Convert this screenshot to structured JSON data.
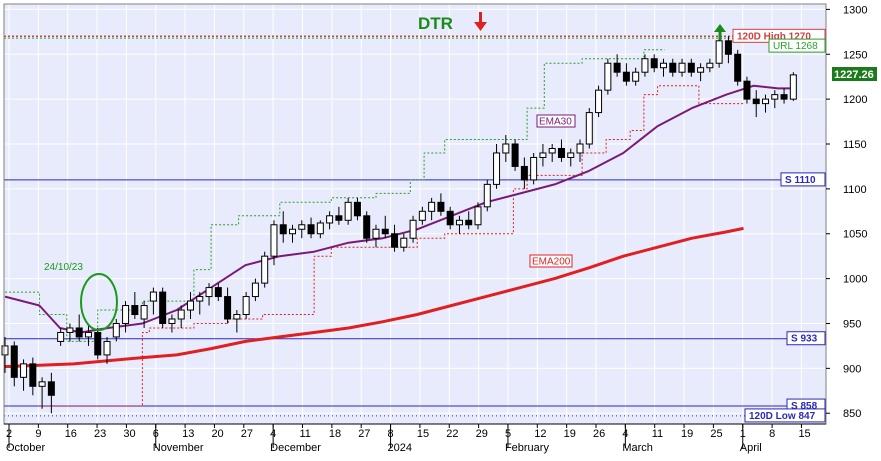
{
  "chart_data": {
    "type": "candlestick",
    "title": "DTR",
    "colors": {
      "background": "#e8ebfb",
      "title": "#1a8a1a",
      "down_arrow": "#e02020",
      "up_arrow": "#1a8a1a",
      "support": "#2a2ab8",
      "resistance": "#d04040",
      "ema30": "#7a1a78",
      "ema200": "#e02020",
      "trail_green": "#2aa02a",
      "trail_red": "#e02020",
      "candle": "#000000",
      "circle": "#1a9a1a",
      "grid": "#ffffff"
    },
    "ylim": [
      838,
      1306
    ],
    "y_ticks": [
      "850",
      "900",
      "950",
      "1000",
      "1050",
      "1100",
      "1150",
      "1200",
      "1250",
      "1300"
    ],
    "x_ticks": [
      "2",
      "9",
      "16",
      "23",
      "30",
      "6",
      "13",
      "20",
      "27",
      "4",
      "11",
      "18",
      "27",
      "8",
      "15",
      "22",
      "29",
      "5",
      "12",
      "19",
      "26",
      "4",
      "11",
      "19",
      "25",
      "1",
      "8",
      "15"
    ],
    "month_labels": [
      {
        "label": "October",
        "tick": 0
      },
      {
        "label": "November",
        "tick": 5
      },
      {
        "label": "December",
        "tick": 9
      },
      {
        "label": "2024",
        "tick": 13
      },
      {
        "label": "February",
        "tick": 17
      },
      {
        "label": "March",
        "tick": 21
      },
      {
        "label": "April",
        "tick": 25
      }
    ],
    "levels": [
      {
        "name": "120D High",
        "label": "120D High 1270",
        "value": 1270
      },
      {
        "name": "URL",
        "label": "URL 1268",
        "value": 1268
      },
      {
        "name": "S 1110",
        "label": "S 1110",
        "value": 1110
      },
      {
        "name": "S 933",
        "label": "S 933",
        "value": 933
      },
      {
        "name": "S 858",
        "label": "S 858",
        "value": 858
      },
      {
        "name": "120D Low",
        "label": "120D Low 847",
        "value": 847
      }
    ],
    "last_price": "1227.26",
    "ema30_label": "EMA30",
    "ema200_label": "EMA200",
    "annotation_date": "24/10/23",
    "ema30": [
      [
        0,
        980
      ],
      [
        10,
        970
      ],
      [
        16,
        945
      ],
      [
        22,
        940
      ],
      [
        30,
        945
      ],
      [
        40,
        950
      ],
      [
        50,
        965
      ],
      [
        60,
        990
      ],
      [
        70,
        1015
      ],
      [
        80,
        1025
      ],
      [
        90,
        1030
      ],
      [
        100,
        1040
      ],
      [
        110,
        1045
      ],
      [
        120,
        1055
      ],
      [
        130,
        1070
      ],
      [
        140,
        1085
      ],
      [
        150,
        1095
      ],
      [
        160,
        1105
      ],
      [
        170,
        1120
      ],
      [
        180,
        1140
      ],
      [
        190,
        1170
      ],
      [
        200,
        1190
      ],
      [
        210,
        1205
      ],
      [
        218,
        1215
      ],
      [
        225,
        1212
      ],
      [
        230,
        1212
      ]
    ],
    "ema200": [
      [
        0,
        902
      ],
      [
        20,
        905
      ],
      [
        40,
        912
      ],
      [
        50,
        915
      ],
      [
        60,
        922
      ],
      [
        70,
        930
      ],
      [
        80,
        935
      ],
      [
        90,
        940
      ],
      [
        100,
        945
      ],
      [
        110,
        952
      ],
      [
        120,
        960
      ],
      [
        130,
        970
      ],
      [
        140,
        980
      ],
      [
        150,
        990
      ],
      [
        160,
        1000
      ],
      [
        170,
        1012
      ],
      [
        180,
        1025
      ],
      [
        190,
        1035
      ],
      [
        200,
        1045
      ],
      [
        210,
        1052
      ],
      [
        215,
        1056
      ]
    ],
    "trail_green": [
      [
        0,
        985
      ],
      [
        10,
        985
      ],
      [
        10,
        960
      ],
      [
        18,
        960
      ],
      [
        18,
        930
      ],
      [
        27,
        930
      ],
      [
        27,
        965
      ],
      [
        40,
        965
      ],
      [
        40,
        975
      ],
      [
        55,
        975
      ],
      [
        55,
        1010
      ],
      [
        60,
        1010
      ],
      [
        60,
        1060
      ],
      [
        68,
        1060
      ],
      [
        68,
        1070
      ],
      [
        80,
        1070
      ],
      [
        80,
        1085
      ],
      [
        95,
        1085
      ],
      [
        95,
        1090
      ],
      [
        108,
        1090
      ],
      [
        108,
        1095
      ],
      [
        118,
        1095
      ],
      [
        118,
        1110
      ],
      [
        122,
        1110
      ],
      [
        122,
        1140
      ],
      [
        128,
        1140
      ],
      [
        128,
        1155
      ],
      [
        152,
        1155
      ],
      [
        152,
        1190
      ],
      [
        157,
        1190
      ],
      [
        157,
        1240
      ],
      [
        168,
        1240
      ],
      [
        168,
        1245
      ],
      [
        186,
        1245
      ],
      [
        186,
        1255
      ],
      [
        192,
        1255
      ]
    ],
    "trail_red": [
      [
        10,
        858
      ],
      [
        40,
        858
      ],
      [
        40,
        940
      ],
      [
        42,
        940
      ],
      [
        42,
        945
      ],
      [
        55,
        945
      ],
      [
        55,
        950
      ],
      [
        65,
        950
      ],
      [
        65,
        955
      ],
      [
        75,
        955
      ],
      [
        75,
        960
      ],
      [
        90,
        960
      ],
      [
        90,
        1025
      ],
      [
        95,
        1025
      ],
      [
        95,
        1035
      ],
      [
        120,
        1035
      ],
      [
        120,
        1045
      ],
      [
        128,
        1045
      ],
      [
        128,
        1050
      ],
      [
        148,
        1050
      ],
      [
        148,
        1100
      ],
      [
        152,
        1100
      ],
      [
        152,
        1115
      ],
      [
        168,
        1115
      ],
      [
        168,
        1140
      ],
      [
        175,
        1140
      ],
      [
        175,
        1155
      ],
      [
        182,
        1155
      ],
      [
        182,
        1165
      ],
      [
        186,
        1165
      ],
      [
        186,
        1205
      ],
      [
        190,
        1205
      ],
      [
        190,
        1215
      ],
      [
        202,
        1215
      ],
      [
        202,
        1195
      ],
      [
        215,
        1195
      ]
    ],
    "candles": [
      [
        0,
        915,
        935,
        895,
        925
      ],
      [
        2,
        925,
        930,
        880,
        890
      ],
      [
        4,
        890,
        910,
        875,
        905
      ],
      [
        6,
        905,
        912,
        870,
        880
      ],
      [
        8,
        880,
        890,
        855,
        885
      ],
      [
        10,
        885,
        895,
        850,
        870
      ],
      [
        12,
        930,
        945,
        925,
        940
      ],
      [
        14,
        940,
        950,
        930,
        945
      ],
      [
        16,
        945,
        960,
        930,
        935
      ],
      [
        18,
        935,
        950,
        925,
        940
      ],
      [
        20,
        940,
        945,
        910,
        915
      ],
      [
        22,
        915,
        935,
        905,
        930
      ],
      [
        24,
        935,
        955,
        930,
        950
      ],
      [
        26,
        950,
        975,
        940,
        970
      ],
      [
        28,
        970,
        985,
        955,
        960
      ],
      [
        30,
        955,
        975,
        945,
        970
      ],
      [
        32,
        975,
        990,
        960,
        985
      ],
      [
        34,
        985,
        990,
        945,
        950
      ],
      [
        36,
        950,
        960,
        940,
        955
      ],
      [
        38,
        955,
        970,
        945,
        965
      ],
      [
        40,
        965,
        985,
        955,
        975
      ],
      [
        42,
        975,
        985,
        960,
        980
      ],
      [
        44,
        980,
        995,
        970,
        990
      ],
      [
        46,
        990,
        995,
        975,
        980
      ],
      [
        48,
        980,
        990,
        950,
        955
      ],
      [
        50,
        955,
        965,
        940,
        960
      ],
      [
        52,
        960,
        985,
        955,
        980
      ],
      [
        54,
        980,
        1000,
        975,
        995
      ],
      [
        56,
        995,
        1030,
        990,
        1025
      ],
      [
        58,
        1025,
        1065,
        1015,
        1060
      ],
      [
        60,
        1060,
        1075,
        1040,
        1050
      ],
      [
        62,
        1050,
        1060,
        1040,
        1055
      ],
      [
        64,
        1055,
        1065,
        1045,
        1060
      ],
      [
        66,
        1060,
        1068,
        1045,
        1050
      ],
      [
        68,
        1050,
        1065,
        1045,
        1062
      ],
      [
        70,
        1062,
        1075,
        1055,
        1070
      ],
      [
        72,
        1070,
        1080,
        1060,
        1065
      ],
      [
        74,
        1065,
        1090,
        1060,
        1085
      ],
      [
        76,
        1085,
        1090,
        1065,
        1070
      ],
      [
        78,
        1070,
        1075,
        1040,
        1045
      ],
      [
        80,
        1045,
        1060,
        1035,
        1055
      ],
      [
        82,
        1055,
        1070,
        1045,
        1050
      ],
      [
        84,
        1050,
        1060,
        1030,
        1035
      ],
      [
        86,
        1035,
        1050,
        1030,
        1045
      ],
      [
        88,
        1045,
        1070,
        1040,
        1065
      ],
      [
        90,
        1065,
        1080,
        1060,
        1075
      ],
      [
        92,
        1075,
        1090,
        1065,
        1085
      ],
      [
        94,
        1085,
        1095,
        1070,
        1075
      ],
      [
        96,
        1075,
        1080,
        1055,
        1060
      ],
      [
        98,
        1060,
        1070,
        1050,
        1065
      ],
      [
        100,
        1065,
        1075,
        1055,
        1060
      ],
      [
        102,
        1060,
        1085,
        1055,
        1080
      ],
      [
        104,
        1080,
        1110,
        1075,
        1105
      ],
      [
        106,
        1105,
        1150,
        1100,
        1140
      ],
      [
        108,
        1140,
        1160,
        1130,
        1150
      ],
      [
        110,
        1150,
        1155,
        1120,
        1125
      ],
      [
        112,
        1125,
        1135,
        1100,
        1110
      ],
      [
        114,
        1110,
        1140,
        1105,
        1135
      ],
      [
        116,
        1135,
        1150,
        1125,
        1140
      ],
      [
        118,
        1140,
        1150,
        1130,
        1145
      ],
      [
        120,
        1145,
        1155,
        1130,
        1135
      ],
      [
        122,
        1135,
        1145,
        1125,
        1140
      ],
      [
        124,
        1140,
        1155,
        1130,
        1150
      ],
      [
        126,
        1150,
        1190,
        1145,
        1185
      ],
      [
        128,
        1185,
        1215,
        1180,
        1210
      ],
      [
        130,
        1210,
        1245,
        1205,
        1240
      ],
      [
        132,
        1240,
        1250,
        1225,
        1230
      ],
      [
        134,
        1230,
        1240,
        1215,
        1220
      ],
      [
        136,
        1220,
        1235,
        1215,
        1230
      ],
      [
        138,
        1230,
        1250,
        1225,
        1245
      ],
      [
        140,
        1245,
        1250,
        1230,
        1235
      ],
      [
        142,
        1235,
        1245,
        1225,
        1240
      ],
      [
        144,
        1240,
        1245,
        1225,
        1230
      ],
      [
        146,
        1230,
        1245,
        1225,
        1240
      ],
      [
        148,
        1240,
        1245,
        1225,
        1230
      ],
      [
        150,
        1230,
        1240,
        1220,
        1235
      ],
      [
        152,
        1235,
        1245,
        1230,
        1240
      ],
      [
        154,
        1240,
        1270,
        1235,
        1265
      ],
      [
        156,
        1265,
        1270,
        1240,
        1250
      ],
      [
        158,
        1250,
        1255,
        1215,
        1220
      ],
      [
        160,
        1220,
        1225,
        1195,
        1200
      ],
      [
        162,
        1200,
        1210,
        1180,
        1195
      ],
      [
        164,
        1195,
        1205,
        1185,
        1200
      ],
      [
        166,
        1200,
        1210,
        1190,
        1205
      ],
      [
        168,
        1205,
        1212,
        1195,
        1200
      ],
      [
        170,
        1200,
        1230,
        1198,
        1227
      ]
    ],
    "n_days": 230
  }
}
